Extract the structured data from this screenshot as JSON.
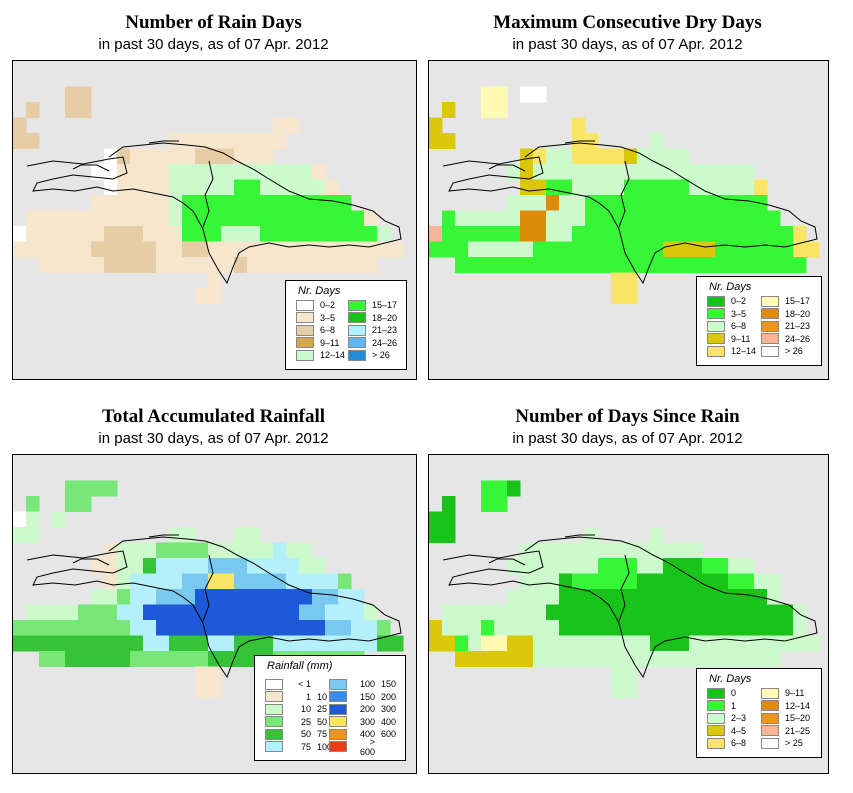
{
  "panels": [
    {
      "title": "Number of Rain Days",
      "subtitle": "in past 30 days, as of  07 Apr. 2012",
      "legend_title": "Nr. Days",
      "legend": [
        {
          "label": "0–2",
          "color": "#ffffff"
        },
        {
          "label": "3–5",
          "color": "#f5e6cd"
        },
        {
          "label": "6–8",
          "color": "#e6cda5"
        },
        {
          "label": "9–11",
          "color": "#d2aa4b"
        },
        {
          "label": "12–14",
          "color": "#cdfacd"
        },
        {
          "label": "15–17",
          "color": "#37f537"
        },
        {
          "label": "18–20",
          "color": "#19c319"
        },
        {
          "label": "21–23",
          "color": "#b4f0fa"
        },
        {
          "label": "24–26",
          "color": "#64b4f0"
        },
        {
          "label": "> 26",
          "color": "#1e8cd7"
        }
      ]
    },
    {
      "title": "Maximum Consecutive Dry Days",
      "subtitle": "in past 30 days, as of  07 Apr. 2012",
      "legend_title": "Nr. Days",
      "legend": [
        {
          "label": "0–2",
          "color": "#19c319"
        },
        {
          "label": "3–5",
          "color": "#37f537"
        },
        {
          "label": "6–8",
          "color": "#cdfacd"
        },
        {
          "label": "9–11",
          "color": "#dcc80a"
        },
        {
          "label": "12–14",
          "color": "#fae664"
        },
        {
          "label": "15–17",
          "color": "#fffab4"
        },
        {
          "label": "18–20",
          "color": "#dc8c0a"
        },
        {
          "label": "21–23",
          "color": "#f09614"
        },
        {
          "label": "24–26",
          "color": "#fab496"
        },
        {
          "label": "> 26",
          "color": "#ffffff"
        }
      ]
    },
    {
      "title": "Total Accumulated Rainfall",
      "subtitle": "in past 30 days, as of  07 Apr. 2012",
      "legend_title": "Rainfall (mm)",
      "legend": [
        {
          "lo": "< 1",
          "hi": "",
          "color": "#ffffff"
        },
        {
          "lo": "1",
          "hi": "10",
          "color": "#f5e6cd"
        },
        {
          "lo": "10",
          "hi": "25",
          "color": "#cdfacd"
        },
        {
          "lo": "25",
          "hi": "50",
          "color": "#78e678"
        },
        {
          "lo": "50",
          "hi": "75",
          "color": "#37c337"
        },
        {
          "lo": "75",
          "hi": "100",
          "color": "#b4f0fa"
        },
        {
          "lo": "100",
          "hi": "150",
          "color": "#78c8f0"
        },
        {
          "lo": "150",
          "hi": "200",
          "color": "#3c8ce6"
        },
        {
          "lo": "200",
          "hi": "300",
          "color": "#1e5ad7"
        },
        {
          "lo": "300",
          "hi": "400",
          "color": "#fae664"
        },
        {
          "lo": "400",
          "hi": "600",
          "color": "#f09614"
        },
        {
          "lo": "> 600",
          "hi": "",
          "color": "#f03c14"
        }
      ]
    },
    {
      "title": "Number of Days Since Rain",
      "subtitle": "in past 30 days, as of  07 Apr. 2012",
      "legend_title": "Nr. Days",
      "legend": [
        {
          "label": "0",
          "color": "#19c319"
        },
        {
          "label": "1",
          "color": "#37f537"
        },
        {
          "label": "2–3",
          "color": "#cdfacd"
        },
        {
          "label": "4–5",
          "color": "#dcc80a"
        },
        {
          "label": "6–8",
          "color": "#fae664"
        },
        {
          "label": "9–11",
          "color": "#fffab4"
        },
        {
          "label": "12–14",
          "color": "#dc8c0a"
        },
        {
          "label": "15–20",
          "color": "#f09614"
        },
        {
          "label": "21–25",
          "color": "#fab496"
        },
        {
          "label": "> 25",
          "color": "#ffffff"
        }
      ]
    }
  ],
  "grids": [
    [
      "...............................",
      "....CC.........................",
      ".C..CC.........................",
      "C...................BB.........",
      "CC..........BBBBBBBBB..........",
      ".......ACBBBBBCCCBBB...........",
      "......AABBBBEEEEEEEEEEEB........",
      ".......ABBBBEEEEEFFEEEEEB.......",
      "......BBBBBBEFFFFFFFFFFFFF......",
      ".BBBBBBBBBBBEFFFFFFFFFFFFFFB....",
      "ABBBBBBCCCBBBFFFEEEFFFFFFFFFE...",
      "BBBBBBCCCCCBBCCBBBBBBBBBBBBBBB..",
      "..BBBBBCCCCBBBBBBCBBBBBBBBBB....",
      "...............B...............",
      "..............BB..............."
    ],
    [
      "...............................",
      "....FF.JJ......................",
      ".D..FF.........................",
      "D..........E...................",
      "DD.........EE....C.............",
      ".......DECCEEEEDCCCC...........",
      "......CDCCCCCCCCCCCCCCCCC.......",
      ".......DDBBCCCCBBBBBCCCCCE......",
      "......CCCGCCBBBBBBBBBBBBBB......",
      ".BCCCCCGGCCCBBBBBBBBBBBBBBB....",
      "IBBBBBBGGCCBBBBBBBBBBBBBBBBBE...",
      "BBBCCCCCBBBBBBBBBBDDDDBBBBBBEE..",
      "..BBBBBBBBBBBBBBBBBBBBBBBBBBB...",
      "..............EE...............",
      "..............EE..............."
    ],
    [
      "...............................",
      "....DDDD.......................",
      ".D..DD.........................",
      "AC.C...........................",
      "CC..........CC...CC............",
      ".......BCCCDDDDCCCCCFCC.........",
      "......BBCCEFFFFGGGFFFFCC........",
      ".......BCFFFFGGJJGGGGFFFFD......",
      "......CCDFFGGGIIIIIIIIIGGFF......",
      ".CCCCDDDFFIIIIIIIIIIIIGGFFFC....",
      "DDDDDDDDDFFIIIIIIIIIIIIIGGFFD...",
      "EEEEEEEEEEFFEEEFFEEEFFFFFFFFEE..",
      "..DDEEEEEDDDDDDEEEEEDDDDDDD.....",
      "..............BB...............",
      "..............BB..............."
    ],
    [
      "...............................",
      "....BBA........................",
      ".A..BB.........................",
      "AA.............................",
      "AA..........C....C.............",
      ".......CCCCCCCCCCCCCC..........",
      "......CCCCCCCBBBCCAAABBCC.......",
      ".......CCCABBBBBAAAAAAABBCC......",
      "......CCCCAAAAAAAAAAAAAAAAC......",
      ".CCCCCCCCAAAAAAAAAAAAAAAAAAAC....",
      "DCCCBCCCCCAAAAAAAAAAAAAAAAAAC...",
      "DDBCFFDDCCCCCCCCCAAACCCCCCCCCC..",
      "..DDDDDDCCCCCCCCCCCCCCCCCCC.....",
      "..............CC...............",
      "..............CC..............."
    ]
  ]
}
